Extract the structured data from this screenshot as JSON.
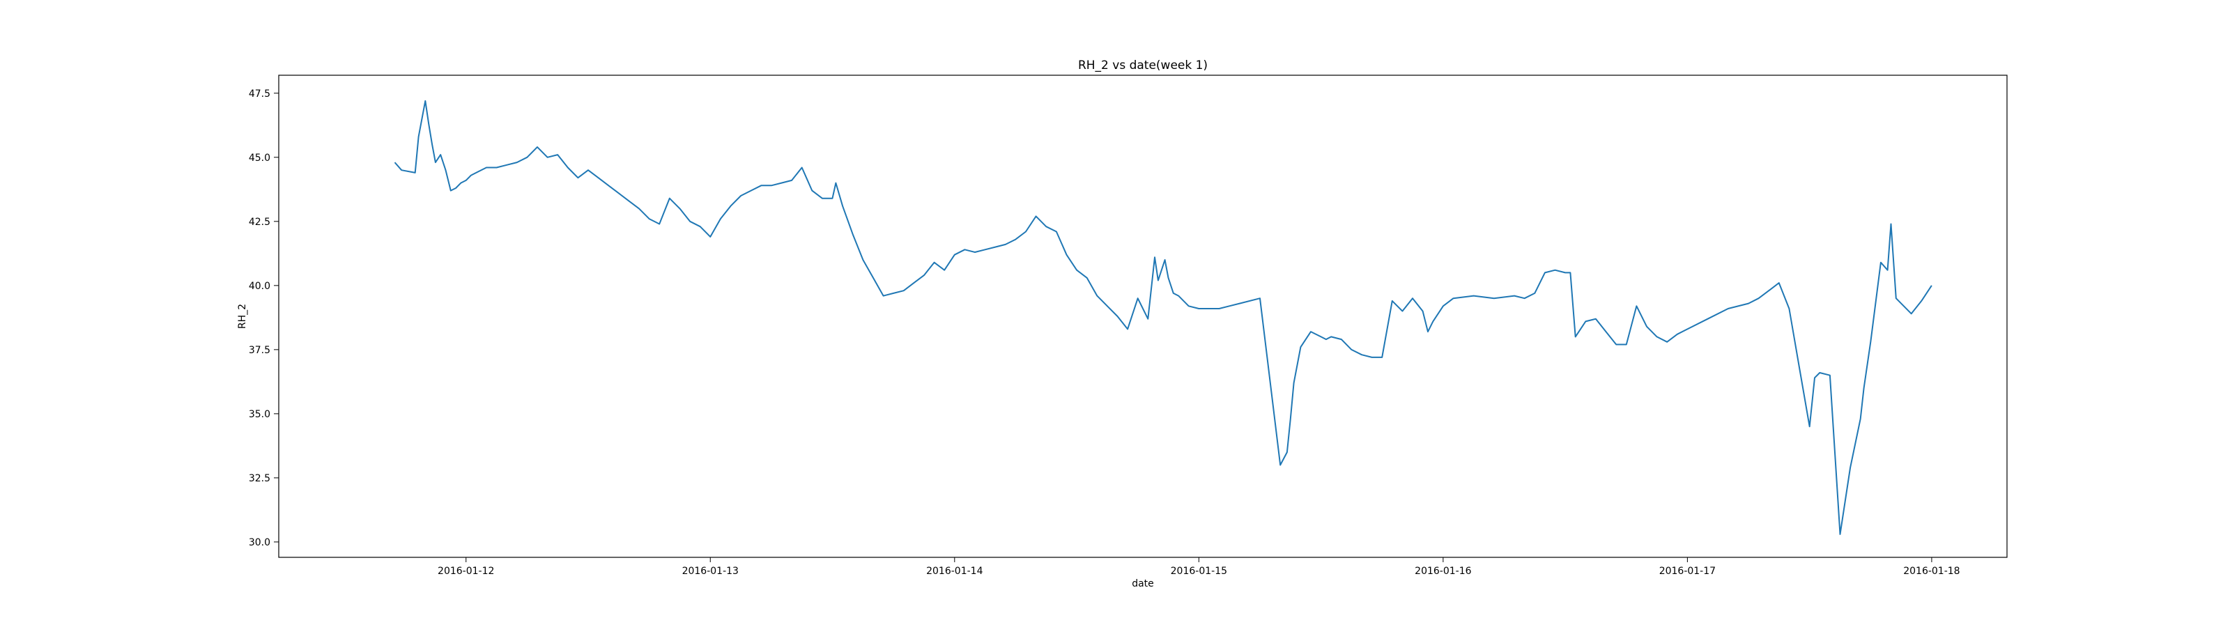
{
  "chart_data": {
    "type": "line",
    "title": "RH_2 vs date(week 1)",
    "xlabel": "date",
    "ylabel": "RH_2",
    "x_ticks": [
      "2016-01-12",
      "2016-01-13",
      "2016-01-14",
      "2016-01-15",
      "2016-01-16",
      "2016-01-17",
      "2016-01-18"
    ],
    "y_ticks": [
      "30.0",
      "32.5",
      "35.0",
      "37.5",
      "40.0",
      "42.5",
      "45.0",
      "47.5"
    ],
    "xlim": [
      "2016-01-11 05:36",
      "2016-01-18 07:24"
    ],
    "ylim": [
      29.4,
      48.2
    ],
    "grid": false,
    "series": [
      {
        "color": "#1f77b4",
        "x": [
          "2016-01-11 17:00",
          "2016-01-11 17:40",
          "2016-01-11 19:00",
          "2016-01-11 19:20",
          "2016-01-11 20:00",
          "2016-01-11 20:20",
          "2016-01-11 20:40",
          "2016-01-11 21:00",
          "2016-01-11 21:30",
          "2016-01-11 22:00",
          "2016-01-11 22:30",
          "2016-01-11 23:00",
          "2016-01-11 23:30",
          "2016-01-12 00:00",
          "2016-01-12 00:30",
          "2016-01-12 01:00",
          "2016-01-12 02:00",
          "2016-01-12 03:00",
          "2016-01-12 04:00",
          "2016-01-12 05:00",
          "2016-01-12 06:00",
          "2016-01-12 07:00",
          "2016-01-12 08:00",
          "2016-01-12 09:00",
          "2016-01-12 10:00",
          "2016-01-12 11:00",
          "2016-01-12 12:00",
          "2016-01-12 13:00",
          "2016-01-12 14:00",
          "2016-01-12 15:00",
          "2016-01-12 16:00",
          "2016-01-12 17:00",
          "2016-01-12 18:00",
          "2016-01-12 19:00",
          "2016-01-12 20:00",
          "2016-01-12 21:00",
          "2016-01-12 22:00",
          "2016-01-12 23:00",
          "2016-01-13 00:00",
          "2016-01-13 01:00",
          "2016-01-13 02:00",
          "2016-01-13 03:00",
          "2016-01-13 04:00",
          "2016-01-13 05:00",
          "2016-01-13 06:00",
          "2016-01-13 07:00",
          "2016-01-13 08:00",
          "2016-01-13 09:00",
          "2016-01-13 10:00",
          "2016-01-13 11:00",
          "2016-01-13 12:00",
          "2016-01-13 12:20",
          "2016-01-13 13:00",
          "2016-01-13 14:00",
          "2016-01-13 15:00",
          "2016-01-13 16:00",
          "2016-01-13 17:00",
          "2016-01-13 18:00",
          "2016-01-13 19:00",
          "2016-01-13 20:00",
          "2016-01-13 21:00",
          "2016-01-13 22:00",
          "2016-01-13 23:00",
          "2016-01-14 00:00",
          "2016-01-14 01:00",
          "2016-01-14 02:00",
          "2016-01-14 03:00",
          "2016-01-14 04:00",
          "2016-01-14 05:00",
          "2016-01-14 06:00",
          "2016-01-14 07:00",
          "2016-01-14 08:00",
          "2016-01-14 09:00",
          "2016-01-14 10:00",
          "2016-01-14 11:00",
          "2016-01-14 12:00",
          "2016-01-14 13:00",
          "2016-01-14 14:00",
          "2016-01-14 15:00",
          "2016-01-14 16:00",
          "2016-01-14 17:00",
          "2016-01-14 18:00",
          "2016-01-14 19:00",
          "2016-01-14 19:40",
          "2016-01-14 20:00",
          "2016-01-14 20:40",
          "2016-01-14 21:00",
          "2016-01-14 21:30",
          "2016-01-14 22:00",
          "2016-01-14 22:30",
          "2016-01-14 23:00",
          "2016-01-15 00:00",
          "2016-01-15 02:00",
          "2016-01-15 03:00",
          "2016-01-15 04:00",
          "2016-01-15 06:00",
          "2016-01-15 08:00",
          "2016-01-15 08:40",
          "2016-01-15 09:00",
          "2016-01-15 09:20",
          "2016-01-15 10:00",
          "2016-01-15 11:00",
          "2016-01-15 12:00",
          "2016-01-15 12:30",
          "2016-01-15 13:00",
          "2016-01-15 14:00",
          "2016-01-15 15:00",
          "2016-01-15 16:00",
          "2016-01-15 17:00",
          "2016-01-15 18:00",
          "2016-01-15 19:00",
          "2016-01-15 20:00",
          "2016-01-15 21:00",
          "2016-01-15 22:00",
          "2016-01-15 22:30",
          "2016-01-15 23:00",
          "2016-01-16 00:00",
          "2016-01-16 01:00",
          "2016-01-16 03:00",
          "2016-01-16 05:00",
          "2016-01-16 07:00",
          "2016-01-16 08:00",
          "2016-01-16 09:00",
          "2016-01-16 10:00",
          "2016-01-16 11:00",
          "2016-01-16 12:00",
          "2016-01-16 12:30",
          "2016-01-16 13:00",
          "2016-01-16 14:00",
          "2016-01-16 15:00",
          "2016-01-16 16:00",
          "2016-01-16 17:00",
          "2016-01-16 18:00",
          "2016-01-16 19:00",
          "2016-01-16 20:00",
          "2016-01-16 21:00",
          "2016-01-16 22:00",
          "2016-01-16 23:00",
          "2016-01-17 00:00",
          "2016-01-17 02:00",
          "2016-01-17 04:00",
          "2016-01-17 06:00",
          "2016-01-17 07:00",
          "2016-01-17 08:00",
          "2016-01-17 09:00",
          "2016-01-17 10:00",
          "2016-01-17 11:00",
          "2016-01-17 12:00",
          "2016-01-17 12:30",
          "2016-01-17 13:00",
          "2016-01-17 14:00",
          "2016-01-17 15:00",
          "2016-01-17 16:00",
          "2016-01-17 17:00",
          "2016-01-17 17:20",
          "2016-01-17 18:00",
          "2016-01-17 19:00",
          "2016-01-17 19:40",
          "2016-01-17 20:00",
          "2016-01-17 20:30",
          "2016-01-17 21:00",
          "2016-01-17 22:00",
          "2016-01-17 23:00",
          "2016-01-18 00:00"
        ],
        "y": [
          44.8,
          44.5,
          44.4,
          45.8,
          47.2,
          46.3,
          45.5,
          44.8,
          45.1,
          44.5,
          43.7,
          43.8,
          44.0,
          44.1,
          44.3,
          44.4,
          44.6,
          44.6,
          44.7,
          44.8,
          45.0,
          45.4,
          45.0,
          45.1,
          44.6,
          44.2,
          44.5,
          44.2,
          43.9,
          43.6,
          43.3,
          43.0,
          42.6,
          42.4,
          43.4,
          43.0,
          42.5,
          42.3,
          41.9,
          42.6,
          43.1,
          43.5,
          43.7,
          43.9,
          43.9,
          44.0,
          44.1,
          44.6,
          43.7,
          43.4,
          43.4,
          44.0,
          43.1,
          42.0,
          41.0,
          40.3,
          39.6,
          39.7,
          39.8,
          40.1,
          40.4,
          40.9,
          40.6,
          41.2,
          41.4,
          41.3,
          41.4,
          41.5,
          41.6,
          41.8,
          42.1,
          42.7,
          42.3,
          42.1,
          41.2,
          40.6,
          40.3,
          39.6,
          39.2,
          38.8,
          38.3,
          39.5,
          38.7,
          41.1,
          40.2,
          41.0,
          40.3,
          39.7,
          39.6,
          39.4,
          39.2,
          39.1,
          39.1,
          39.2,
          39.3,
          39.5,
          33.0,
          33.5,
          34.8,
          36.2,
          37.6,
          38.2,
          38.0,
          37.9,
          38.0,
          37.9,
          37.5,
          37.3,
          37.2,
          37.2,
          39.4,
          39.0,
          39.5,
          39.0,
          38.2,
          38.6,
          39.2,
          39.5,
          39.6,
          39.5,
          39.6,
          39.5,
          39.7,
          40.5,
          40.6,
          40.5,
          40.5,
          38.0,
          38.6,
          38.7,
          38.2,
          37.7,
          37.7,
          39.2,
          38.4,
          38.0,
          37.8,
          38.1,
          38.3,
          38.7,
          39.1,
          39.3,
          39.5,
          39.8,
          40.1,
          39.1,
          36.8,
          34.5,
          36.4,
          36.6,
          36.5,
          30.3,
          32.9,
          34.8,
          36.0,
          37.8,
          40.9,
          40.6,
          42.4,
          39.5,
          39.3,
          38.9,
          39.4,
          40.0
        ]
      }
    ]
  }
}
